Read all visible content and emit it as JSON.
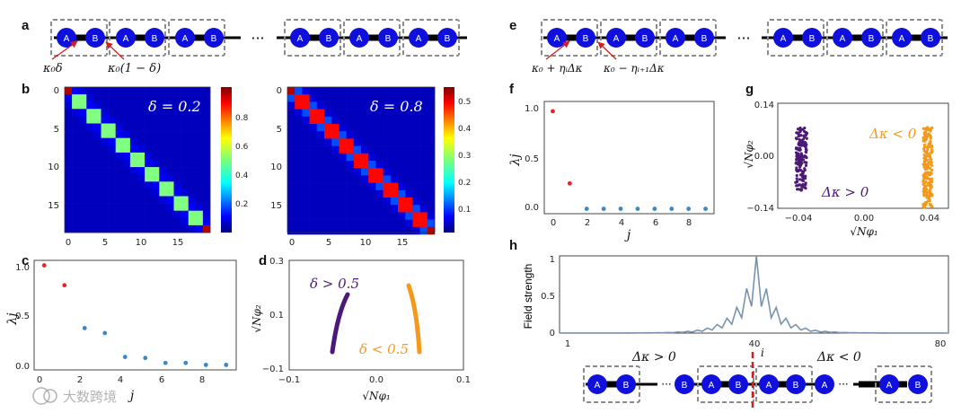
{
  "panel_labels": {
    "a": "a",
    "b": "b",
    "c": "c",
    "d": "d",
    "e": "e",
    "f": "f",
    "g": "g",
    "h": "h"
  },
  "chain": {
    "site_a": "A",
    "site_b": "B",
    "ellipsis": "···",
    "left_coupling_1": "κ₀δ",
    "left_coupling_2": "κ₀(1 − δ)",
    "right_coupling_1": "κ₀ + ηᵢΔκ",
    "right_coupling_2": "κ₀ − ηᵢ₊₁Δκ"
  },
  "heatmap_left": {
    "label": "δ = 0.2",
    "y_ticks": [
      "0",
      "5",
      "10",
      "15"
    ],
    "x_ticks": [
      "0",
      "5",
      "10",
      "15"
    ],
    "colorbar_ticks": [
      "0.8",
      "0.6",
      "0.4",
      "0.2"
    ]
  },
  "heatmap_right": {
    "label": "δ = 0.8",
    "y_ticks": [
      "0",
      "5",
      "10",
      "15"
    ],
    "x_ticks": [
      "0",
      "5",
      "10",
      "15"
    ],
    "colorbar_ticks": [
      "0.5",
      "0.4",
      "0.3",
      "0.2",
      "0.1"
    ]
  },
  "colors": {
    "red": "#e3262b",
    "blue": "#3d87c2",
    "purple": "#4b1a78",
    "orange": "#f39a1e",
    "site_fill": "#1010dd",
    "box_stroke": "#8a8a8a",
    "line": "#7892b0",
    "dashed_red": "#d22020"
  },
  "chart_data": [
    {
      "panel": "c",
      "type": "scatter",
      "xlabel": "j",
      "ylabel": "λj",
      "x": [
        0,
        1,
        2,
        3,
        4,
        5,
        6,
        7,
        8,
        9
      ],
      "y": [
        1.0,
        0.8,
        0.37,
        0.32,
        0.08,
        0.07,
        0.02,
        0.02,
        0.0,
        0.0
      ],
      "colors": [
        "red",
        "red",
        "blue",
        "blue",
        "blue",
        "blue",
        "blue",
        "blue",
        "blue",
        "blue"
      ],
      "xlim": [
        -0.5,
        9.5
      ],
      "ylim": [
        -0.05,
        1.05
      ],
      "x_ticks": [
        "0",
        "2",
        "4",
        "6",
        "8"
      ],
      "y_ticks": [
        "0.0",
        "0.5",
        "1.0"
      ]
    },
    {
      "panel": "d",
      "type": "scatter",
      "xlabel": "√Nφ₁",
      "ylabel": "√Nφ₂",
      "xlim": [
        -0.1,
        0.1
      ],
      "ylim": [
        -0.1,
        0.3
      ],
      "x_ticks": [
        "−0.1",
        "0.0",
        "0.1"
      ],
      "y_ticks": [
        "−0.1",
        "0.1",
        "0.3"
      ],
      "series": [
        {
          "name": "δ > 0.5",
          "color": "purple"
        },
        {
          "name": "δ < 0.5",
          "color": "orange"
        }
      ]
    },
    {
      "panel": "f",
      "type": "scatter",
      "xlabel": "j",
      "ylabel": "λj",
      "x": [
        0,
        1,
        2,
        3,
        4,
        5,
        6,
        7,
        8,
        9
      ],
      "y": [
        1.0,
        0.26,
        0.0,
        0.0,
        0.0,
        0.0,
        0.0,
        0.0,
        0.0,
        0.0
      ],
      "colors": [
        "red",
        "red",
        "blue",
        "blue",
        "blue",
        "blue",
        "blue",
        "blue",
        "blue",
        "blue"
      ],
      "xlim": [
        -0.5,
        9.5
      ],
      "ylim": [
        -0.05,
        1.1
      ],
      "x_ticks": [
        "0",
        "2",
        "4",
        "6",
        "8"
      ],
      "y_ticks": [
        "0.0",
        "0.5",
        "1.0"
      ]
    },
    {
      "panel": "g",
      "type": "scatter",
      "xlabel": "√Nφ₁",
      "ylabel": "√Nφ₂",
      "xlim": [
        -0.055,
        0.055
      ],
      "ylim": [
        -0.14,
        0.14
      ],
      "x_ticks": [
        "−0.04",
        "0.00",
        "0.04"
      ],
      "y_ticks": [
        "−0.14",
        "0.00",
        "0.14"
      ],
      "series": [
        {
          "name": "Δκ > 0",
          "color": "purple"
        },
        {
          "name": "Δκ < 0",
          "color": "orange"
        }
      ]
    },
    {
      "panel": "h",
      "type": "line",
      "ylabel": "Field strength",
      "xlim": [
        1,
        80
      ],
      "ylim": [
        0,
        1
      ],
      "x_ticks": [
        "1",
        "40",
        "80"
      ],
      "y_ticks": [
        "0",
        "0.5",
        "1"
      ],
      "marker_label": "i",
      "left_label": "Δκ > 0",
      "right_label": "Δκ < 0"
    }
  ],
  "watermark": "大数跨境"
}
